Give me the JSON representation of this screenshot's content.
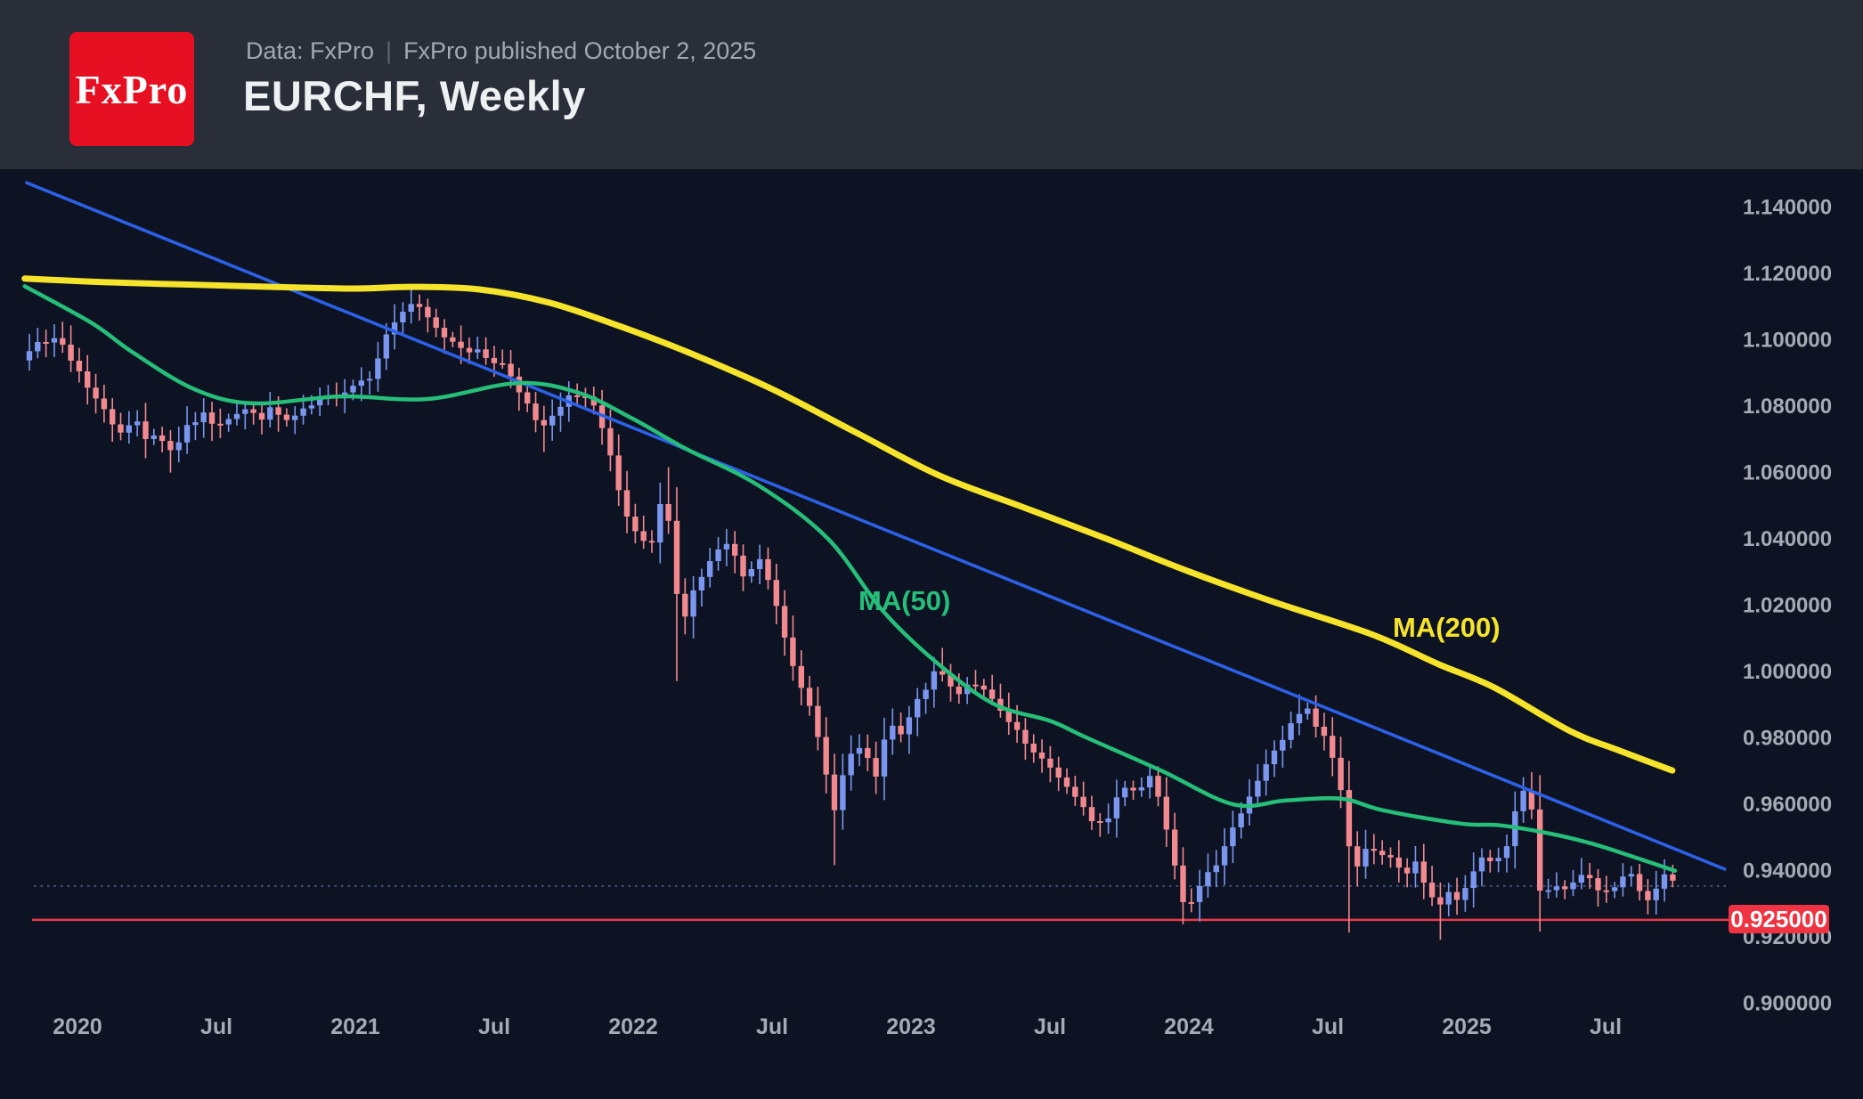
{
  "header": {
    "brand_logo_text": "FxPro",
    "source_prefix": "Data: FxPro",
    "source_separator": "|",
    "source_text": "FxPro published October 2, 2025",
    "title": "EURCHF, Weekly"
  },
  "chart_data": {
    "type": "candlestick",
    "symbol": "EURCHF",
    "timeframe": "Weekly",
    "grid": false,
    "ylim": [
      0.894,
      1.151
    ],
    "y_axis": {
      "side": "right",
      "ticks": [
        {
          "label": "1.140000",
          "value": 1.14
        },
        {
          "label": "1.120000",
          "value": 1.12
        },
        {
          "label": "1.100000",
          "value": 1.1
        },
        {
          "label": "1.080000",
          "value": 1.08
        },
        {
          "label": "1.060000",
          "value": 1.06
        },
        {
          "label": "1.040000",
          "value": 1.04
        },
        {
          "label": "1.020000",
          "value": 1.02
        },
        {
          "label": "1.000000",
          "value": 1.0
        },
        {
          "label": "0.980000",
          "value": 0.98
        },
        {
          "label": "0.960000",
          "value": 0.96
        },
        {
          "label": "0.940000",
          "value": 0.94
        },
        {
          "label": "0.920000",
          "value": 0.92
        },
        {
          "label": "0.900000",
          "value": 0.9
        }
      ]
    },
    "x_axis": {
      "labels": [
        {
          "label": "2020",
          "t": 2020.0
        },
        {
          "label": "Jul",
          "t": 2020.5
        },
        {
          "label": "2021",
          "t": 2021.0
        },
        {
          "label": "Jul",
          "t": 2021.5
        },
        {
          "label": "2022",
          "t": 2022.0
        },
        {
          "label": "Jul",
          "t": 2022.5
        },
        {
          "label": "2023",
          "t": 2023.0
        },
        {
          "label": "Jul",
          "t": 2023.5
        },
        {
          "label": "2024",
          "t": 2024.0
        },
        {
          "label": "Jul",
          "t": 2024.5
        },
        {
          "label": "2025",
          "t": 2025.0
        },
        {
          "label": "Jul",
          "t": 2025.5
        }
      ]
    },
    "candles_weekly_close_anchors": [
      [
        2019.82,
        1.097
      ],
      [
        2019.855,
        1.1005
      ],
      [
        2019.89,
        1.0975
      ],
      [
        2019.93,
        1.101
      ],
      [
        2019.97,
        1.0945
      ],
      [
        2020.01,
        1.09
      ],
      [
        2020.05,
        1.084
      ],
      [
        2020.09,
        1.079
      ],
      [
        2020.13,
        1.0745
      ],
      [
        2020.17,
        1.0718
      ],
      [
        2020.21,
        1.076
      ],
      [
        2020.25,
        1.07
      ],
      [
        2020.29,
        1.0722
      ],
      [
        2020.33,
        1.066
      ],
      [
        2020.37,
        1.07
      ],
      [
        2020.41,
        1.0748
      ],
      [
        2020.45,
        1.0772
      ],
      [
        2020.5,
        1.0745
      ],
      [
        2020.55,
        1.0772
      ],
      [
        2020.6,
        1.079
      ],
      [
        2020.65,
        1.0762
      ],
      [
        2020.7,
        1.0788
      ],
      [
        2020.75,
        1.0752
      ],
      [
        2020.8,
        1.0772
      ],
      [
        2020.85,
        1.0802
      ],
      [
        2020.9,
        1.082
      ],
      [
        2020.95,
        1.0842
      ],
      [
        2021.0,
        1.0868
      ],
      [
        2021.05,
        1.089
      ],
      [
        2021.1,
        1.099
      ],
      [
        2021.15,
        1.1068
      ],
      [
        2021.2,
        1.1108
      ],
      [
        2021.25,
        1.1072
      ],
      [
        2021.3,
        1.102
      ],
      [
        2021.36,
        1.0992
      ],
      [
        2021.42,
        1.0966
      ],
      [
        2021.48,
        1.0945
      ],
      [
        2021.54,
        1.0918
      ],
      [
        2021.6,
        1.0838
      ],
      [
        2021.66,
        1.0725
      ],
      [
        2021.71,
        1.0762
      ],
      [
        2021.76,
        1.0815
      ],
      [
        2021.81,
        1.0845
      ],
      [
        2021.86,
        1.0795
      ],
      [
        2021.91,
        1.0665
      ],
      [
        2021.96,
        1.0495
      ],
      [
        2022.01,
        1.0405
      ],
      [
        2022.06,
        1.036
      ],
      [
        2022.115,
        1.056
      ],
      [
        2022.17,
        1.013
      ],
      [
        2022.22,
        1.0245
      ],
      [
        2022.28,
        1.033
      ],
      [
        2022.34,
        1.0385
      ],
      [
        2022.4,
        1.028
      ],
      [
        2022.46,
        1.0335
      ],
      [
        2022.52,
        1.019
      ],
      [
        2022.56,
        1.006
      ],
      [
        2022.6,
        0.9975
      ],
      [
        2022.64,
        0.987
      ],
      [
        2022.68,
        0.9745
      ],
      [
        2022.72,
        0.958
      ],
      [
        2022.76,
        0.97
      ],
      [
        2022.8,
        0.978
      ],
      [
        2022.84,
        0.973
      ],
      [
        2022.88,
        0.968
      ],
      [
        2022.92,
        0.985
      ],
      [
        2022.96,
        0.9795
      ],
      [
        2023.0,
        0.987
      ],
      [
        2023.05,
        0.995
      ],
      [
        2023.1,
        1.0005
      ],
      [
        2023.16,
        0.993
      ],
      [
        2023.22,
        0.9975
      ],
      [
        2023.28,
        0.992
      ],
      [
        2023.34,
        0.9855
      ],
      [
        2023.4,
        0.979
      ],
      [
        2023.46,
        0.973
      ],
      [
        2023.52,
        0.97
      ],
      [
        2023.58,
        0.9625
      ],
      [
        2023.64,
        0.956
      ],
      [
        2023.7,
        0.9535
      ],
      [
        2023.76,
        0.966
      ],
      [
        2023.82,
        0.964
      ],
      [
        2023.86,
        0.9685
      ],
      [
        2023.9,
        0.961
      ],
      [
        2023.94,
        0.9455
      ],
      [
        2023.985,
        0.9295
      ],
      [
        2024.03,
        0.933
      ],
      [
        2024.09,
        0.941
      ],
      [
        2024.15,
        0.952
      ],
      [
        2024.21,
        0.96
      ],
      [
        2024.27,
        0.9715
      ],
      [
        2024.33,
        0.9775
      ],
      [
        2024.38,
        0.9855
      ],
      [
        2024.42,
        0.989
      ],
      [
        2024.46,
        0.983
      ],
      [
        2024.5,
        0.979
      ],
      [
        2024.54,
        0.968
      ],
      [
        2024.59,
        0.9385
      ],
      [
        2024.63,
        0.9475
      ],
      [
        2024.68,
        0.944
      ],
      [
        2024.73,
        0.943
      ],
      [
        2024.78,
        0.939
      ],
      [
        2024.82,
        0.9418
      ],
      [
        2024.86,
        0.934
      ],
      [
        2024.9,
        0.9292
      ],
      [
        2024.94,
        0.933
      ],
      [
        2024.98,
        0.9302
      ],
      [
        2025.02,
        0.9388
      ],
      [
        2025.06,
        0.9448
      ],
      [
        2025.1,
        0.942
      ],
      [
        2025.14,
        0.9465
      ],
      [
        2025.17,
        0.9558
      ],
      [
        2025.205,
        0.964
      ],
      [
        2025.24,
        0.9555
      ],
      [
        2025.27,
        0.9268
      ],
      [
        2025.305,
        0.9375
      ],
      [
        2025.34,
        0.9332
      ],
      [
        2025.38,
        0.9348
      ],
      [
        2025.42,
        0.9392
      ],
      [
        2025.46,
        0.9356
      ],
      [
        2025.5,
        0.933
      ],
      [
        2025.54,
        0.9356
      ],
      [
        2025.58,
        0.9395
      ],
      [
        2025.62,
        0.9342
      ],
      [
        2025.655,
        0.9312
      ],
      [
        2025.69,
        0.9368
      ],
      [
        2025.72,
        0.9388
      ],
      [
        2025.75,
        0.9352
      ]
    ],
    "wick_events": [
      {
        "t": 2019.855,
        "high": 1.1035
      },
      {
        "t": 2020.33,
        "low": 1.0598
      },
      {
        "t": 2021.2,
        "high": 1.115
      },
      {
        "t": 2021.67,
        "low": 1.066
      },
      {
        "t": 2022.115,
        "high": 1.0615
      },
      {
        "t": 2022.17,
        "low": 0.997
      },
      {
        "t": 2022.72,
        "low": 0.9415
      },
      {
        "t": 2023.1,
        "high": 1.007
      },
      {
        "t": 2023.985,
        "low": 0.9255
      },
      {
        "t": 2024.41,
        "high": 0.993
      },
      {
        "t": 2024.59,
        "low": 0.9212
      },
      {
        "t": 2024.9,
        "low": 0.919
      },
      {
        "t": 2025.205,
        "high": 0.968
      },
      {
        "t": 2025.27,
        "low": 0.9215
      },
      {
        "t": 2025.655,
        "low": 0.9278
      }
    ],
    "ma50": {
      "label": "MA(50)",
      "color": "#26be78",
      "points": [
        [
          2019.81,
          1.116
        ],
        [
          2020.05,
          1.105
        ],
        [
          2020.2,
          1.096
        ],
        [
          2020.42,
          1.085
        ],
        [
          2020.63,
          1.0807
        ],
        [
          2020.95,
          1.0828
        ],
        [
          2021.26,
          1.082
        ],
        [
          2021.58,
          1.0868
        ],
        [
          2021.8,
          1.084
        ],
        [
          2022.0,
          1.076
        ],
        [
          2022.19,
          1.067
        ],
        [
          2022.45,
          1.056
        ],
        [
          2022.7,
          1.04
        ],
        [
          2022.9,
          1.018
        ],
        [
          2023.1,
          1.002
        ],
        [
          2023.3,
          0.99
        ],
        [
          2023.5,
          0.985
        ],
        [
          2023.63,
          0.98
        ],
        [
          2023.9,
          0.97
        ],
        [
          2024.16,
          0.9598
        ],
        [
          2024.35,
          0.961
        ],
        [
          2024.55,
          0.9615
        ],
        [
          2024.7,
          0.958
        ],
        [
          2024.98,
          0.954
        ],
        [
          2025.12,
          0.9535
        ],
        [
          2025.3,
          0.951
        ],
        [
          2025.45,
          0.948
        ],
        [
          2025.6,
          0.944
        ],
        [
          2025.75,
          0.9398
        ]
      ]
    },
    "ma200": {
      "label": "MA(200)",
      "color": "#f6e32b",
      "points": [
        [
          2019.81,
          1.1183
        ],
        [
          2020.1,
          1.1172
        ],
        [
          2020.4,
          1.1165
        ],
        [
          2020.7,
          1.1158
        ],
        [
          2021.0,
          1.1153
        ],
        [
          2021.2,
          1.1158
        ],
        [
          2021.45,
          1.115
        ],
        [
          2021.7,
          1.111
        ],
        [
          2021.95,
          1.104
        ],
        [
          2022.2,
          1.096
        ],
        [
          2022.5,
          1.085
        ],
        [
          2022.8,
          1.072
        ],
        [
          2023.1,
          1.059
        ],
        [
          2023.4,
          1.0495
        ],
        [
          2023.7,
          1.04
        ],
        [
          2024.0,
          1.03
        ],
        [
          2024.3,
          1.021
        ],
        [
          2024.66,
          1.011
        ],
        [
          2024.9,
          1.002
        ],
        [
          2025.1,
          0.995
        ],
        [
          2025.37,
          0.982
        ],
        [
          2025.55,
          0.976
        ],
        [
          2025.74,
          0.97
        ]
      ]
    },
    "trendline": {
      "color": "#2c60e6",
      "from": [
        2019.817,
        1.1472
      ],
      "to": [
        2025.929,
        0.9403
      ]
    },
    "support_line": {
      "price": 0.925,
      "label": "0.925000",
      "line_color": "#e9394a",
      "tag_bg": "#ef3342",
      "tag_text_color": "#ffffff"
    },
    "last_price_line": {
      "price": 0.9352,
      "style": "dotted",
      "color": "#465582"
    },
    "colors": {
      "bull": "#7a96ef",
      "bear": "#f2898f",
      "background": "#0d1322",
      "header_bg": "#2a2e39",
      "axis_text": "#a6aab4"
    }
  }
}
